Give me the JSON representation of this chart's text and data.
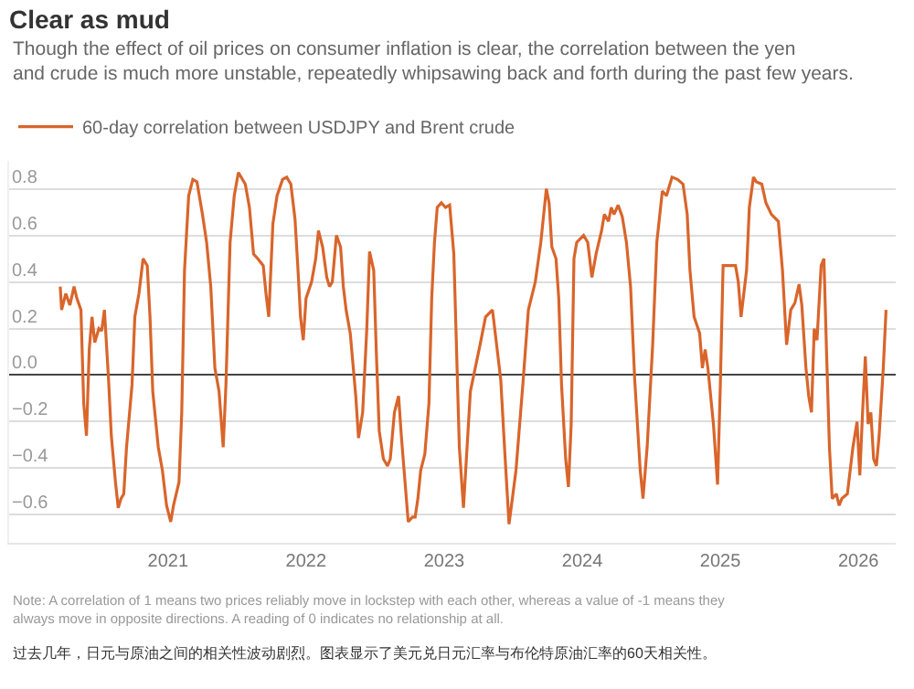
{
  "chart_data": {
    "type": "line",
    "title": "Clear as mud",
    "subtitle": "Though the effect of oil prices on consumer inflation is clear, the correlation between the yen and crude is much more unstable, repeatedly whipsawing back and forth during the past few years.",
    "x": [
      2020.22,
      2020.23,
      2020.26,
      2020.29,
      2020.32,
      2020.34,
      2020.37,
      2020.39,
      2020.41,
      2020.43,
      2020.45,
      2020.47,
      2020.5,
      2020.52,
      2020.54,
      2020.57,
      2020.59,
      2020.62,
      2020.64,
      2020.66,
      2020.68,
      2020.7,
      2020.74,
      2020.76,
      2020.79,
      2020.82,
      2020.85,
      2020.87,
      2020.89,
      2020.93,
      2020.96,
      2020.99,
      2021.02,
      2021.04,
      2021.08,
      2021.1,
      2021.12,
      2021.15,
      2021.18,
      2021.21,
      2021.25,
      2021.28,
      2021.31,
      2021.34,
      2021.37,
      2021.4,
      2021.42,
      2021.45,
      2021.48,
      2021.51,
      2021.56,
      2021.59,
      2021.62,
      2021.65,
      2021.69,
      2021.71,
      2021.73,
      2021.76,
      2021.79,
      2021.83,
      2021.86,
      2021.89,
      2021.92,
      2021.94,
      2021.96,
      2021.98,
      2022.0,
      2022.04,
      2022.07,
      2022.09,
      2022.12,
      2022.15,
      2022.17,
      2022.19,
      2022.22,
      2022.25,
      2022.27,
      2022.29,
      2022.32,
      2022.36,
      2022.38,
      2022.41,
      2022.44,
      2022.46,
      2022.49,
      2022.51,
      2022.53,
      2022.56,
      2022.59,
      2022.61,
      2022.64,
      2022.67,
      2022.69,
      2022.71,
      2022.74,
      2022.77,
      2022.79,
      2022.81,
      2022.83,
      2022.86,
      2022.89,
      2022.91,
      2022.93,
      2022.95,
      2022.98,
      2023.01,
      2023.04,
      2023.07,
      2023.11,
      2023.14,
      2023.19,
      2023.26,
      2023.3,
      2023.35,
      2023.41,
      2023.44,
      2023.47,
      2023.52,
      2023.57,
      2023.61,
      2023.66,
      2023.7,
      2023.74,
      2023.76,
      2023.78,
      2023.81,
      2023.83,
      2023.85,
      2023.88,
      2023.9,
      2023.92,
      2023.94,
      2023.96,
      2024.01,
      2024.04,
      2024.07,
      2024.1,
      2024.14,
      2024.16,
      2024.19,
      2024.21,
      2024.23,
      2024.26,
      2024.29,
      2024.32,
      2024.35,
      2024.38,
      2024.42,
      2024.44,
      2024.47,
      2024.51,
      2024.54,
      2024.58,
      2024.61,
      2024.65,
      2024.69,
      2024.73,
      2024.76,
      2024.78,
      2024.81,
      2024.85,
      2024.87,
      2024.89,
      2024.91,
      2024.95,
      2024.98,
      2025.0,
      2025.02,
      2025.07,
      2025.11,
      2025.13,
      2025.15,
      2025.19,
      2025.21,
      2025.24,
      2025.26,
      2025.3,
      2025.33,
      2025.37,
      2025.42,
      2025.45,
      2025.48,
      2025.51,
      2025.54,
      2025.57,
      2025.59,
      2025.62,
      2025.64,
      2025.66,
      2025.68,
      2025.7,
      2025.73,
      2025.75,
      2025.77,
      2025.79,
      2025.81,
      2025.84,
      2025.86,
      2025.88,
      2025.92,
      2025.96,
      2025.99,
      2026.01,
      2026.03,
      2026.05,
      2026.07,
      2026.09,
      2026.11,
      2026.13,
      2026.15,
      2026.18,
      2026.2
    ],
    "series": [
      {
        "name": "60-day correlation between USDJPY and Brent crude",
        "color": "#d9652b",
        "values": [
          0.38,
          0.28,
          0.35,
          0.3,
          0.38,
          0.33,
          0.28,
          -0.12,
          -0.26,
          0.11,
          0.25,
          0.14,
          0.2,
          0.19,
          0.28,
          -0.02,
          -0.26,
          -0.46,
          -0.57,
          -0.53,
          -0.51,
          -0.31,
          -0.04,
          0.25,
          0.35,
          0.5,
          0.47,
          0.25,
          -0.07,
          -0.31,
          -0.41,
          -0.56,
          -0.63,
          -0.56,
          -0.46,
          -0.16,
          0.45,
          0.77,
          0.84,
          0.83,
          0.69,
          0.57,
          0.38,
          0.03,
          -0.07,
          -0.31,
          -0.04,
          0.57,
          0.77,
          0.87,
          0.82,
          0.72,
          0.52,
          0.5,
          0.47,
          0.35,
          0.25,
          0.65,
          0.77,
          0.84,
          0.85,
          0.82,
          0.67,
          0.47,
          0.25,
          0.15,
          0.33,
          0.4,
          0.5,
          0.62,
          0.55,
          0.42,
          0.38,
          0.4,
          0.6,
          0.55,
          0.38,
          0.28,
          0.18,
          -0.09,
          -0.27,
          -0.16,
          0.2,
          0.53,
          0.45,
          0.08,
          -0.24,
          -0.36,
          -0.39,
          -0.36,
          -0.16,
          -0.09,
          -0.26,
          -0.41,
          -0.63,
          -0.61,
          -0.61,
          -0.53,
          -0.41,
          -0.34,
          -0.12,
          0.33,
          0.57,
          0.72,
          0.74,
          0.72,
          0.73,
          0.52,
          -0.31,
          -0.57,
          -0.07,
          0.13,
          0.25,
          0.28,
          -0.02,
          -0.34,
          -0.64,
          -0.41,
          -0.04,
          0.28,
          0.4,
          0.57,
          0.8,
          0.74,
          0.55,
          0.5,
          0.33,
          -0.04,
          -0.36,
          -0.48,
          -0.21,
          0.5,
          0.57,
          0.6,
          0.57,
          0.42,
          0.52,
          0.62,
          0.69,
          0.66,
          0.72,
          0.69,
          0.73,
          0.68,
          0.57,
          0.38,
          -0.02,
          -0.41,
          -0.53,
          -0.31,
          0.13,
          0.57,
          0.79,
          0.77,
          0.85,
          0.84,
          0.82,
          0.69,
          0.45,
          0.25,
          0.18,
          0.03,
          0.11,
          0.03,
          -0.21,
          -0.47,
          -0.04,
          0.47,
          0.47,
          0.47,
          0.4,
          0.25,
          0.45,
          0.72,
          0.85,
          0.83,
          0.82,
          0.74,
          0.69,
          0.66,
          0.45,
          0.13,
          0.28,
          0.31,
          0.39,
          0.3,
          0.03,
          -0.09,
          -0.16,
          0.2,
          0.15,
          0.47,
          0.5,
          0.08,
          -0.31,
          -0.53,
          -0.51,
          -0.56,
          -0.53,
          -0.51,
          -0.31,
          -0.2,
          -0.43,
          -0.16,
          0.08,
          -0.21,
          -0.16,
          -0.36,
          -0.39,
          -0.26,
          0.03,
          0.28
        ]
      }
    ],
    "xlim": [
      2019.85,
      2026.27
    ],
    "xticks": [
      2021,
      2022,
      2023,
      2024,
      2025,
      2026
    ],
    "ylim": [
      -0.72,
      0.92
    ],
    "yticks": [
      {
        "value": -0.6,
        "label": "−0.6"
      },
      {
        "value": -0.4,
        "label": "−0.4"
      },
      {
        "value": -0.2,
        "label": "−0.2"
      },
      {
        "value": 0,
        "label": "0.0"
      },
      {
        "value": 0.2,
        "label": "0.2"
      },
      {
        "value": 0.4,
        "label": "0.4"
      },
      {
        "value": 0.6,
        "label": "0.6"
      },
      {
        "value": 0.8,
        "label": "0.8"
      }
    ],
    "grid": "y",
    "legend": "top left",
    "marker": "none",
    "line_style": "solid",
    "annotations": [
      "Note: A correlation of 1 means two prices reliably move in lockstep with each other, whereas a value of -1 means they always move in opposite directions. A reading of 0 indicates no relationship at all.",
      "过去几年，日元与原油之间的相关性波动剧烈。图表显示了美元兑日元汇率与布伦特原油汇率的60天相关性。"
    ]
  }
}
